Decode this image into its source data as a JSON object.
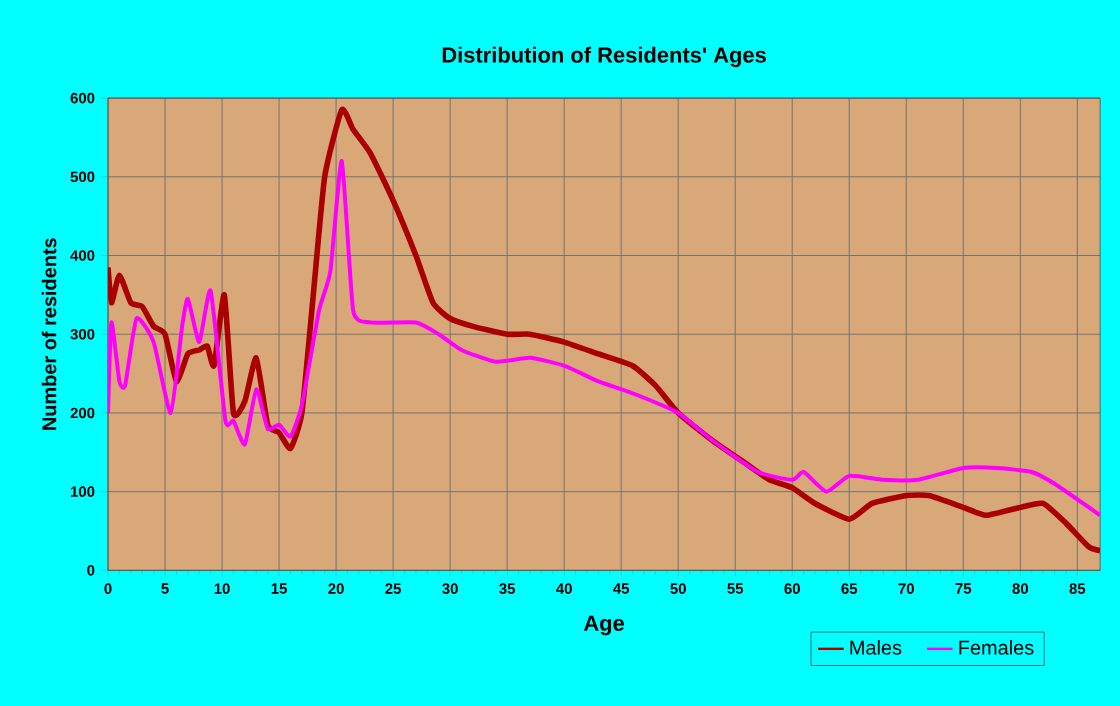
{
  "chart_data": {
    "type": "line",
    "title": "Distribution of Residents' Ages",
    "xlabel": "Age",
    "ylabel": "Number of residents",
    "xlim": [
      0,
      87
    ],
    "xticks": [
      0,
      5,
      10,
      15,
      20,
      25,
      30,
      35,
      40,
      45,
      50,
      55,
      60,
      65,
      70,
      75,
      80,
      85
    ],
    "ylim": [
      0,
      600
    ],
    "yticks": [
      0,
      100,
      200,
      300,
      400,
      500,
      600
    ],
    "grid": true,
    "legend": "bottom right",
    "line_style": "solid",
    "marker": "none",
    "series": [
      {
        "name": "Males",
        "color": "#aa0000",
        "x": [
          0,
          0.3,
          1,
          2,
          3,
          4,
          5,
          6,
          7,
          8,
          8.7,
          9.3,
          10.2,
          11,
          12,
          13,
          14,
          15,
          16,
          17,
          18,
          19,
          20.5,
          21.5,
          23,
          25,
          27,
          28.5,
          30,
          32,
          35,
          37,
          40,
          43,
          46,
          48,
          50,
          53,
          56,
          58,
          60,
          62,
          65,
          67,
          70,
          72,
          75,
          77,
          80,
          82,
          84,
          86,
          87
        ],
        "values": [
          385,
          340,
          375,
          340,
          335,
          310,
          300,
          240,
          275,
          280,
          285,
          260,
          350,
          200,
          215,
          270,
          185,
          175,
          155,
          200,
          350,
          500,
          585,
          560,
          530,
          470,
          400,
          340,
          320,
          310,
          300,
          300,
          290,
          275,
          260,
          235,
          200,
          165,
          135,
          115,
          105,
          85,
          65,
          85,
          95,
          95,
          80,
          70,
          80,
          85,
          60,
          30,
          25
        ]
      },
      {
        "name": "Females",
        "color": "#ff00ff",
        "x": [
          0,
          0.3,
          1,
          1.5,
          2.5,
          4,
          5.5,
          6.5,
          7,
          8,
          9,
          10.3,
          11,
          12,
          13,
          14,
          15,
          16,
          17,
          18.5,
          19.5,
          20.5,
          21.5,
          23,
          27,
          29,
          31,
          34,
          37,
          40,
          43,
          46,
          50,
          53,
          57,
          60,
          61,
          63,
          65,
          68,
          71,
          75,
          78,
          81,
          83,
          87
        ],
        "values": [
          200,
          315,
          240,
          235,
          320,
          290,
          200,
          310,
          345,
          290,
          355,
          190,
          190,
          160,
          230,
          180,
          185,
          170,
          210,
          330,
          380,
          520,
          330,
          315,
          315,
          300,
          280,
          265,
          270,
          260,
          240,
          225,
          200,
          165,
          125,
          115,
          125,
          100,
          120,
          115,
          115,
          130,
          130,
          125,
          110,
          70
        ]
      }
    ]
  }
}
